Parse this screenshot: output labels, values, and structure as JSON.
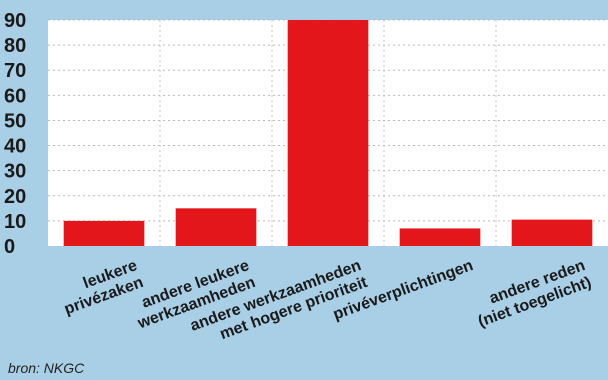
{
  "chart_data": {
    "type": "bar",
    "title": "",
    "xlabel": "",
    "ylabel": "",
    "ylim": [
      0,
      90
    ],
    "yticks": [
      0,
      10,
      20,
      30,
      40,
      50,
      60,
      70,
      80,
      90
    ],
    "grid": true,
    "categories": [
      [
        "leukere",
        "privézaken"
      ],
      [
        "andere leukere",
        "werkzaamheden"
      ],
      [
        "andere werkzaamheden",
        "met hogere prioriteit"
      ],
      [
        "privéverplichtingen"
      ],
      [
        "andere reden",
        "(niet toegelicht)"
      ]
    ],
    "values": [
      10,
      15,
      90,
      7,
      10.5
    ],
    "bar_color": "#e3161b"
  },
  "source_text": "bron: NKGC"
}
